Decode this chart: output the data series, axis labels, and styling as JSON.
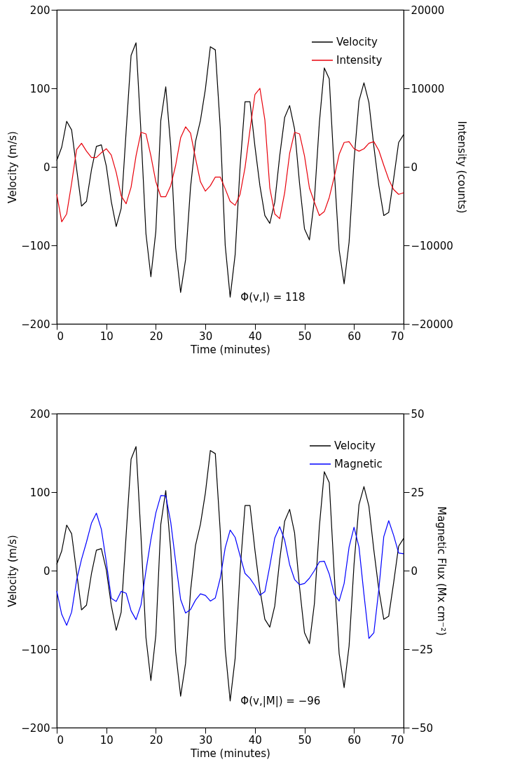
{
  "chart_data": [
    {
      "type": "line",
      "xlabel": "Time (minutes)",
      "ylabel": "Velocity (m/s)",
      "y2label": "Intensity (counts)",
      "xlim": [
        0,
        70
      ],
      "xticks": [
        0,
        10,
        20,
        30,
        40,
        50,
        60,
        70
      ],
      "ylim": [
        -200,
        200
      ],
      "yticks": [
        -200,
        -100,
        0,
        100,
        200
      ],
      "y2lim": [
        -20000,
        20000
      ],
      "y2ticks": [
        -20000,
        -10000,
        0,
        10000,
        20000
      ],
      "legend": "top right",
      "annotations": [
        "Φ(v,I) = 118"
      ],
      "x": [
        0,
        1,
        2,
        3,
        4,
        5,
        6,
        7,
        8,
        9,
        10,
        11,
        12,
        13,
        14,
        15,
        16,
        17,
        18,
        19,
        20,
        21,
        22,
        23,
        24,
        25,
        26,
        27,
        28,
        29,
        30,
        31,
        32,
        33,
        34,
        35,
        36,
        37,
        38,
        39,
        40,
        41,
        42,
        43,
        44,
        45,
        46,
        47,
        48,
        49,
        50,
        51,
        52,
        53,
        54,
        55,
        56,
        57,
        58,
        59,
        60,
        61,
        62,
        63,
        64,
        65,
        66,
        67,
        68,
        69,
        70
      ],
      "series": [
        {
          "name": "Velocity",
          "color": "#000000",
          "values": [
            8,
            25,
            58,
            47,
            -2,
            -50,
            -44,
            -4,
            26,
            28,
            1,
            -44,
            -76,
            -53,
            45,
            142,
            158,
            44,
            -85,
            -140,
            -82,
            59,
            102,
            26,
            -103,
            -160,
            -118,
            -26,
            32,
            59,
            99,
            153,
            149,
            50,
            -100,
            -166,
            -112,
            0,
            83,
            83,
            26,
            -24,
            -62,
            -72,
            -45,
            14,
            63,
            78,
            48,
            -21,
            -79,
            -93,
            -42,
            56,
            126,
            112,
            -4,
            -106,
            -149,
            -96,
            8,
            84,
            107,
            82,
            26,
            -24,
            -62,
            -58,
            -15,
            31,
            41
          ]
        },
        {
          "name": "Intensity",
          "color": "#e8000b",
          "axis": "y2",
          "values": [
            -3500,
            -7000,
            -6000,
            -2100,
            2200,
            3000,
            2000,
            1200,
            1200,
            1800,
            2300,
            1500,
            -700,
            -3700,
            -4700,
            -2600,
            1400,
            4400,
            4200,
            1400,
            -1900,
            -3800,
            -3800,
            -2400,
            200,
            3700,
            5100,
            4300,
            1100,
            -1900,
            -3100,
            -2400,
            -1300,
            -1300,
            -2800,
            -4400,
            -4900,
            -3500,
            -100,
            4700,
            9200,
            10000,
            6000,
            -2700,
            -6000,
            -6600,
            -3300,
            1700,
            4400,
            4200,
            1400,
            -2700,
            -4500,
            -6200,
            -5700,
            -3900,
            -1300,
            1600,
            3100,
            3200,
            2300,
            2000,
            2300,
            3000,
            3200,
            2100,
            200,
            -1600,
            -2900,
            -3500,
            -3300
          ]
        }
      ]
    },
    {
      "type": "line",
      "xlabel": "Time (minutes)",
      "ylabel": "Velocity (m/s)",
      "y2label": "Magnetic Flux (Mx cm⁻²)",
      "xlim": [
        0,
        70
      ],
      "xticks": [
        0,
        10,
        20,
        30,
        40,
        50,
        60,
        70
      ],
      "ylim": [
        -200,
        200
      ],
      "yticks": [
        -200,
        -100,
        0,
        100,
        200
      ],
      "y2lim": [
        -50,
        50
      ],
      "y2ticks": [
        -50,
        -25,
        0,
        25,
        50
      ],
      "legend": "top right",
      "annotations": [
        "Φ(v,|M|) = −96"
      ],
      "x": [
        0,
        1,
        2,
        3,
        4,
        5,
        6,
        7,
        8,
        9,
        10,
        11,
        12,
        13,
        14,
        15,
        16,
        17,
        18,
        19,
        20,
        21,
        22,
        23,
        24,
        25,
        26,
        27,
        28,
        29,
        30,
        31,
        32,
        33,
        34,
        35,
        36,
        37,
        38,
        39,
        40,
        41,
        42,
        43,
        44,
        45,
        46,
        47,
        48,
        49,
        50,
        51,
        52,
        53,
        54,
        55,
        56,
        57,
        58,
        59,
        60,
        61,
        62,
        63,
        64,
        65,
        66,
        67,
        68,
        69,
        70
      ],
      "series": [
        {
          "name": "Velocity",
          "color": "#000000",
          "values": [
            8,
            25,
            58,
            47,
            -2,
            -50,
            -44,
            -4,
            26,
            28,
            1,
            -44,
            -76,
            -53,
            45,
            142,
            158,
            44,
            -85,
            -140,
            -82,
            59,
            102,
            26,
            -103,
            -160,
            -118,
            -26,
            32,
            59,
            99,
            153,
            149,
            50,
            -100,
            -166,
            -112,
            0,
            83,
            83,
            26,
            -24,
            -62,
            -72,
            -45,
            14,
            63,
            78,
            48,
            -21,
            -79,
            -93,
            -42,
            56,
            126,
            112,
            -4,
            -106,
            -149,
            -96,
            8,
            84,
            107,
            82,
            26,
            -24,
            -62,
            -58,
            -15,
            31,
            41
          ]
        },
        {
          "name": "Magnetic",
          "color": "#0000ff",
          "axis": "y2",
          "values": [
            -6.5,
            -13.9,
            -17.4,
            -13.2,
            -3.1,
            3.6,
            9.1,
            15.1,
            18.3,
            13.2,
            2.8,
            -8.8,
            -9.8,
            -6.6,
            -7.2,
            -12.8,
            -15.6,
            -10.9,
            -0.1,
            9.9,
            18.4,
            23.9,
            23.8,
            15.5,
            2.8,
            -9.2,
            -13.5,
            -12.4,
            -9.4,
            -7.4,
            -7.9,
            -9.7,
            -8.7,
            -2.4,
            7.3,
            12.9,
            10.6,
            4.7,
            -0.9,
            -2.5,
            -4.8,
            -7.8,
            -6.7,
            1.5,
            10.4,
            14,
            9.7,
            1.9,
            -2.8,
            -4.5,
            -4.1,
            -2.4,
            0,
            2.8,
            3,
            -1.1,
            -7.5,
            -9.7,
            -4.1,
            7.5,
            13.8,
            7.5,
            -7.5,
            -21.6,
            -19.8,
            -6,
            10.8,
            15.9,
            11.2,
            5.6,
            5.4
          ]
        }
      ]
    }
  ]
}
